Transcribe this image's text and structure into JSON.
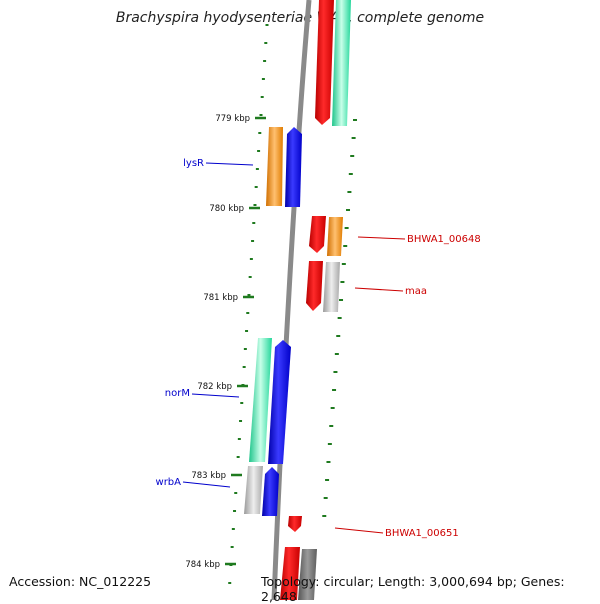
{
  "title": "Brachyspira hyodysenteriae WA1, complete genome",
  "footer": {
    "accession": "Accession: NC_012225",
    "summary": "Topology: circular; Length: 3,000,694 bp; Genes: 2,648"
  },
  "tick_labels": [
    "779 kbp",
    "780 kbp",
    "781 kbp",
    "782 kbp",
    "783 kbp",
    "784 kbp"
  ],
  "gene_labels": [
    {
      "name": "lysR",
      "color": "#0000cc"
    },
    {
      "name": "BHWA1_00648",
      "color": "#cc0000"
    },
    {
      "name": "maa",
      "color": "#cc0000"
    },
    {
      "name": "norM",
      "color": "#0000cc"
    },
    {
      "name": "wrbA",
      "color": "#0000cc"
    },
    {
      "name": "BHWA1_00651",
      "color": "#cc0000"
    }
  ],
  "colors": {
    "backbone": "#8a8a8a",
    "tick": "#1f7a1f",
    "red": "#ee1111",
    "teal": "#2ee8a6",
    "orange": "#f08a00",
    "blue": "#1010ee",
    "gray": "#bcbcbc",
    "dark_gray": "#777777"
  }
}
